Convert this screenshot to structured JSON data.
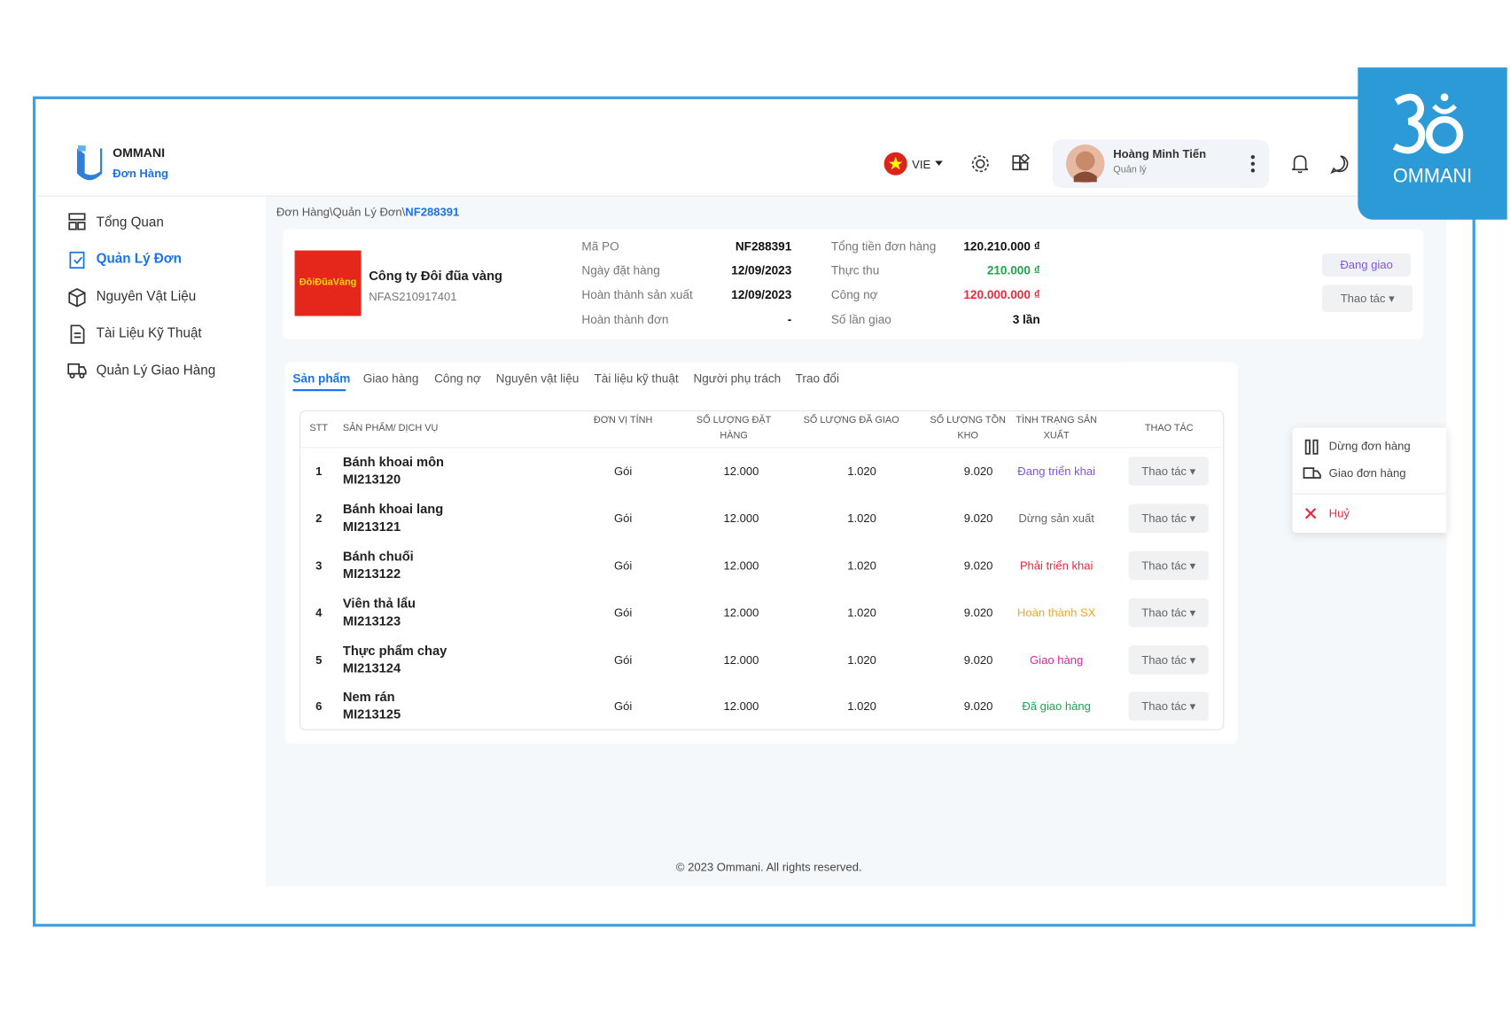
{
  "brand": {
    "name": "OMMANI",
    "module": "Đơn Hàng",
    "corner_logo_text": "OMMANI"
  },
  "header": {
    "language": "VIE",
    "user_name": "Hoàng Minh Tiến",
    "user_role": "Quản lý"
  },
  "sidebar": {
    "items": [
      "Tổng Quan",
      "Quản Lý Đơn",
      "Nguyên Vật Liệu",
      "Tài Liệu Kỹ Thuật",
      "Quản Lý Giao Hàng"
    ]
  },
  "breadcrumb": {
    "path": "Đơn Hàng\\Quản Lý Đơn\\",
    "current": "NF288391"
  },
  "order": {
    "company": "Công ty Đôi đũa vàng",
    "company_code": "NFAS210917401",
    "logo_text": "ĐôiĐũaVàng",
    "fields_left": [
      {
        "label": "Mã PO",
        "value": "NF288391"
      },
      {
        "label": "Ngày đặt hàng",
        "value": "12/09/2023"
      },
      {
        "label": "Hoàn thành sản xuất",
        "value": "12/09/2023"
      },
      {
        "label": "Hoàn thành đơn",
        "value": "-"
      }
    ],
    "fields_right": [
      {
        "label": "Tổng tiền đơn hàng",
        "value": "120.210.000 ₫"
      },
      {
        "label": "Thực thu",
        "value": "210.000 ₫"
      },
      {
        "label": "Công nợ",
        "value": "120.000.000 ₫"
      },
      {
        "label": "Số lần giao",
        "value": "3 lần"
      }
    ],
    "status": "Đang giao",
    "action": "Thao tác"
  },
  "tabs": [
    "Sản phẩm",
    "Giao hàng",
    "Công nợ",
    "Nguyên vật liệu",
    "Tài liệu kỹ thuật",
    "Người phụ trách",
    "Trao đổi"
  ],
  "table": {
    "headers": [
      "STT",
      "SẢN PHẨM/ DỊCH VỤ",
      "ĐƠN VỊ TÍNH",
      "SỐ LƯỢNG ĐẶT HÀNG",
      "SỐ LƯỢNG ĐÃ GIAO",
      "SỐ LƯỢNG TỒN KHO",
      "TÌNH TRẠNG SẢN XUẤT",
      "THAO TÁC"
    ],
    "rows": [
      [
        "1",
        "Bánh khoai môn",
        "MI213120",
        "Gói",
        "12.000",
        "1.020",
        "9.020",
        "Đang triển khai",
        "Thao tác"
      ],
      [
        "2",
        "Bánh khoai lang",
        "MI213121",
        "Gói",
        "12.000",
        "1.020",
        "9.020",
        "Dừng sản xuất",
        "Thao tác"
      ],
      [
        "3",
        "Bánh chuối",
        "MI213122",
        "Gói",
        "12.000",
        "1.020",
        "9.020",
        "Phải triển khai",
        "Thao tác"
      ],
      [
        "4",
        "Viên thả lẩu",
        "MI213123",
        "Gói",
        "12.000",
        "1.020",
        "9.020",
        "Hoàn thành SX",
        "Thao tác"
      ],
      [
        "5",
        "Thực phẩm chay",
        "MI213124",
        "Gói",
        "12.000",
        "1.020",
        "9.020",
        "Giao hàng",
        "Thao tác"
      ],
      [
        "6",
        "Nem rán",
        "MI213125",
        "Gói",
        "12.000",
        "1.020",
        "9.020",
        "Đã giao hàng",
        "Thao tác"
      ]
    ]
  },
  "menu": {
    "items": [
      "Dừng đơn hàng",
      "Giao đơn hàng",
      "Huỷ"
    ]
  },
  "footer": {
    "text": "© 2023 Ommani. All rights reserved."
  }
}
